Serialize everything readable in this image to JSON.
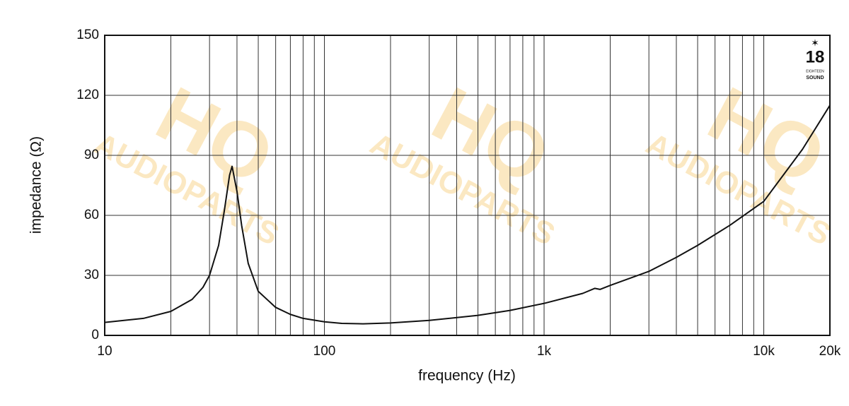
{
  "chart_data": {
    "type": "line",
    "xlabel": "frequency (Hz)",
    "ylabel": "impedance (Ω)",
    "xscale": "log",
    "grid": true,
    "xlim": [
      10,
      20000
    ],
    "ylim": [
      0,
      150
    ],
    "xticks": [
      10,
      100,
      {
        "value": 1000,
        "label": "1k"
      },
      {
        "value": 10000,
        "label": "10k"
      },
      {
        "value": 20000,
        "label": "20k"
      }
    ],
    "yticks": [
      0,
      30,
      60,
      90,
      120,
      150
    ],
    "x": [
      10,
      15,
      20,
      25,
      28,
      30,
      33,
      35,
      37,
      38,
      40,
      42,
      45,
      50,
      60,
      70,
      80,
      100,
      120,
      150,
      200,
      300,
      500,
      700,
      1000,
      1500,
      1700,
      1800,
      2000,
      3000,
      4000,
      5000,
      7000,
      10000,
      15000,
      20000
    ],
    "series": [
      {
        "color": "#111111",
        "values": [
          6.5,
          8.5,
          12,
          18,
          24,
          30,
          45,
          62,
          80,
          84.5,
          72,
          55,
          36,
          22,
          14,
          10.5,
          8.5,
          6.8,
          6,
          5.8,
          6.2,
          7.5,
          10,
          12.5,
          16,
          21,
          23.5,
          23,
          25,
          32,
          39,
          45,
          55,
          67,
          93,
          115
        ]
      }
    ],
    "logo": {
      "number": "18",
      "line1": "EIGHTEEN",
      "line2": "SOUND"
    },
    "watermark": {
      "big": "HQ",
      "small": "AUDIOPARTS"
    }
  }
}
